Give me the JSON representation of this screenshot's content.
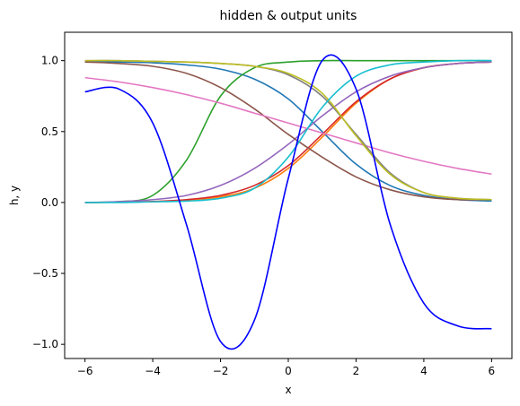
{
  "chart_data": {
    "type": "line",
    "title": "hidden & output units",
    "xlabel": "x",
    "ylabel": "h, y",
    "xlim": [
      -6.6,
      6.6
    ],
    "ylim": [
      -1.1,
      1.2
    ],
    "xticks": [
      -6,
      -4,
      -2,
      0,
      2,
      4,
      6
    ],
    "xtick_labels": [
      "−6",
      "−4",
      "−2",
      "0",
      "2",
      "4",
      "6"
    ],
    "yticks": [
      -1.0,
      -0.5,
      0.0,
      0.5,
      1.0
    ],
    "ytick_labels": [
      "−1.0",
      "−0.5",
      "0.0",
      "0.5",
      "1.0"
    ],
    "grid": false,
    "legend": "none",
    "x": [
      -6,
      -5,
      -4,
      -3,
      -2,
      -1,
      0,
      1,
      2,
      3,
      4,
      5,
      6
    ],
    "series": [
      {
        "color": "#1f77b4",
        "values": [
          0.99,
          0.99,
          0.985,
          0.97,
          0.94,
          0.87,
          0.73,
          0.5,
          0.27,
          0.12,
          0.05,
          0.02,
          0.01
        ]
      },
      {
        "color": "#ff7f0e",
        "values": [
          0.0,
          0.002,
          0.006,
          0.015,
          0.04,
          0.1,
          0.24,
          0.46,
          0.7,
          0.87,
          0.95,
          0.98,
          0.99
        ]
      },
      {
        "color": "#2ca02c",
        "values": [
          0.0,
          0.006,
          0.05,
          0.3,
          0.75,
          0.95,
          0.99,
          1.0,
          1.0,
          1.0,
          1.0,
          1.0,
          1.0
        ]
      },
      {
        "color": "#d62728",
        "values": [
          0.0,
          0.002,
          0.007,
          0.02,
          0.05,
          0.12,
          0.26,
          0.48,
          0.71,
          0.87,
          0.95,
          0.98,
          0.99
        ]
      },
      {
        "color": "#9467bd",
        "values": [
          0.0,
          0.006,
          0.02,
          0.05,
          0.12,
          0.24,
          0.41,
          0.61,
          0.78,
          0.89,
          0.95,
          0.98,
          0.99
        ]
      },
      {
        "color": "#8c564b",
        "values": [
          0.99,
          0.98,
          0.96,
          0.91,
          0.81,
          0.66,
          0.48,
          0.32,
          0.18,
          0.09,
          0.04,
          0.02,
          0.02
        ]
      },
      {
        "color": "#e377c2",
        "values": [
          0.88,
          0.85,
          0.81,
          0.76,
          0.7,
          0.63,
          0.56,
          0.49,
          0.42,
          0.35,
          0.29,
          0.24,
          0.2
        ]
      },
      {
        "color": "#7f7f7f",
        "values": [
          1.0,
          1.0,
          0.995,
          0.99,
          0.98,
          0.96,
          0.9,
          0.75,
          0.48,
          0.21,
          0.07,
          0.03,
          0.02
        ]
      },
      {
        "color": "#bcbd22",
        "values": [
          1.0,
          1.0,
          0.995,
          0.99,
          0.98,
          0.96,
          0.91,
          0.77,
          0.47,
          0.2,
          0.07,
          0.03,
          0.02
        ]
      },
      {
        "color": "#17becf",
        "values": [
          0.0,
          0.0,
          0.005,
          0.01,
          0.03,
          0.1,
          0.32,
          0.67,
          0.89,
          0.97,
          0.99,
          1.0,
          1.0
        ]
      },
      {
        "color": "#0000ff",
        "values": [
          0.78,
          0.8,
          0.56,
          -0.16,
          -0.98,
          -0.83,
          0.17,
          1.0,
          0.8,
          -0.15,
          -0.71,
          -0.87,
          -0.89
        ]
      }
    ]
  }
}
